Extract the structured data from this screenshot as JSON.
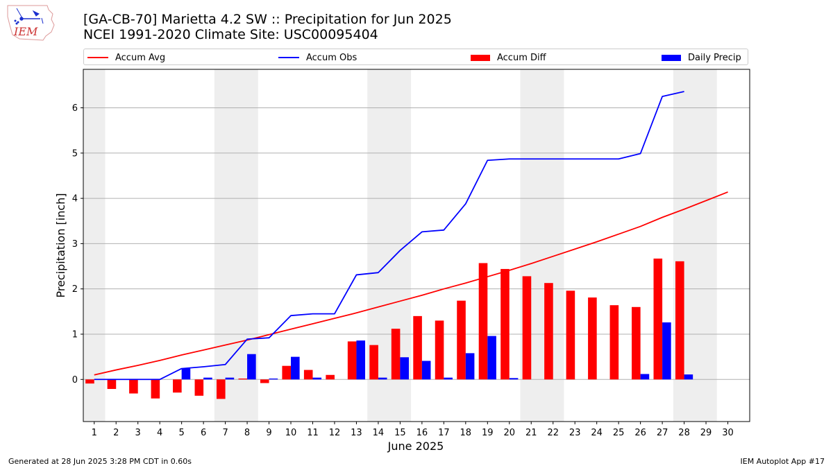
{
  "header": {
    "title_line1": "[GA-CB-70] Marietta 4.2 SW :: Precipitation for Jun 2025",
    "title_line2": "NCEI 1991-2020 Climate Site: USC00095404",
    "logo_text": "IEM"
  },
  "legend": {
    "items": [
      {
        "label": "Accum Avg",
        "color": "#ff0000",
        "kind": "line"
      },
      {
        "label": "Accum Obs",
        "color": "#0000ff",
        "kind": "line"
      },
      {
        "label": "Accum Diff",
        "color": "#ff0000",
        "kind": "bar"
      },
      {
        "label": "Daily Precip",
        "color": "#0000ff",
        "kind": "bar"
      }
    ]
  },
  "footer": {
    "left": "Generated at 28 Jun 2025 3:28 PM CDT in 0.60s",
    "right": "IEM Autoplot App #17"
  },
  "chart_data": {
    "type": "bar",
    "xlabel": "June 2025",
    "ylabel": "Precipitation [inch]",
    "xlim": [
      0.5,
      31.0
    ],
    "ylim": [
      -0.93,
      6.85
    ],
    "yticks": [
      0,
      1,
      2,
      3,
      4,
      5,
      6
    ],
    "categories": [
      "1",
      "2",
      "3",
      "4",
      "5",
      "6",
      "7",
      "8",
      "9",
      "10",
      "11",
      "12",
      "13",
      "14",
      "15",
      "16",
      "17",
      "18",
      "19",
      "20",
      "21",
      "22",
      "23",
      "24",
      "25",
      "26",
      "27",
      "28",
      "29",
      "30"
    ],
    "weekend_shading": [
      [
        0.5,
        1.5
      ],
      [
        6.5,
        8.5
      ],
      [
        13.5,
        15.5
      ],
      [
        20.5,
        22.5
      ],
      [
        27.5,
        29.5
      ]
    ],
    "grid_y": true,
    "series": [
      {
        "name": "Accum Avg",
        "kind": "line",
        "color": "#ff0000",
        "x": [
          1,
          2,
          3,
          4,
          5,
          6,
          7,
          8,
          9,
          10,
          11,
          12,
          13,
          14,
          15,
          16,
          17,
          18,
          19,
          20,
          21,
          22,
          23,
          24,
          25,
          26,
          27,
          28,
          29,
          30
        ],
        "values": [
          0.1,
          0.21,
          0.31,
          0.42,
          0.54,
          0.65,
          0.76,
          0.87,
          0.99,
          1.11,
          1.23,
          1.35,
          1.47,
          1.6,
          1.73,
          1.86,
          2.0,
          2.13,
          2.27,
          2.41,
          2.56,
          2.72,
          2.88,
          3.04,
          3.21,
          3.38,
          3.58,
          3.76,
          3.95,
          4.14
        ]
      },
      {
        "name": "Accum Obs",
        "kind": "line",
        "color": "#0000ff",
        "x": [
          1,
          2,
          3,
          4,
          5,
          6,
          7,
          8,
          9,
          10,
          11,
          12,
          13,
          14,
          15,
          16,
          17,
          18,
          19,
          20,
          21,
          22,
          23,
          24,
          25,
          26,
          27,
          28
        ],
        "values": [
          0.0,
          0.0,
          0.0,
          0.0,
          0.24,
          0.28,
          0.33,
          0.89,
          0.92,
          1.41,
          1.45,
          1.45,
          2.31,
          2.36,
          2.85,
          3.26,
          3.3,
          3.88,
          4.84,
          4.87,
          4.87,
          4.87,
          4.87,
          4.87,
          4.87,
          4.99,
          6.25,
          6.36
        ]
      },
      {
        "name": "Accum Diff",
        "kind": "bar",
        "color": "#ff0000",
        "x": [
          1,
          2,
          3,
          4,
          5,
          6,
          7,
          8,
          9,
          10,
          11,
          12,
          13,
          14,
          15,
          16,
          17,
          18,
          19,
          20,
          21,
          22,
          23,
          24,
          25,
          26,
          27,
          28
        ],
        "values": [
          -0.09,
          -0.21,
          -0.31,
          -0.42,
          -0.29,
          -0.36,
          -0.43,
          0.02,
          -0.08,
          0.3,
          0.21,
          0.1,
          0.84,
          0.76,
          1.12,
          1.4,
          1.3,
          1.74,
          2.57,
          2.44,
          2.28,
          2.13,
          1.96,
          1.81,
          1.64,
          1.6,
          2.67,
          2.61
        ]
      },
      {
        "name": "Daily Precip",
        "kind": "bar",
        "color": "#0000ff",
        "x": [
          1,
          2,
          3,
          4,
          5,
          6,
          7,
          8,
          9,
          10,
          11,
          12,
          13,
          14,
          15,
          16,
          17,
          18,
          19,
          20,
          21,
          22,
          23,
          24,
          25,
          26,
          27,
          28
        ],
        "values": [
          0.0,
          0.0,
          0.0,
          0.0,
          0.24,
          0.04,
          0.04,
          0.56,
          0.02,
          0.5,
          0.04,
          0.0,
          0.86,
          0.04,
          0.49,
          0.41,
          0.04,
          0.58,
          0.96,
          0.03,
          0.0,
          0.0,
          0.0,
          0.0,
          0.0,
          0.12,
          1.26,
          0.11
        ]
      }
    ]
  }
}
